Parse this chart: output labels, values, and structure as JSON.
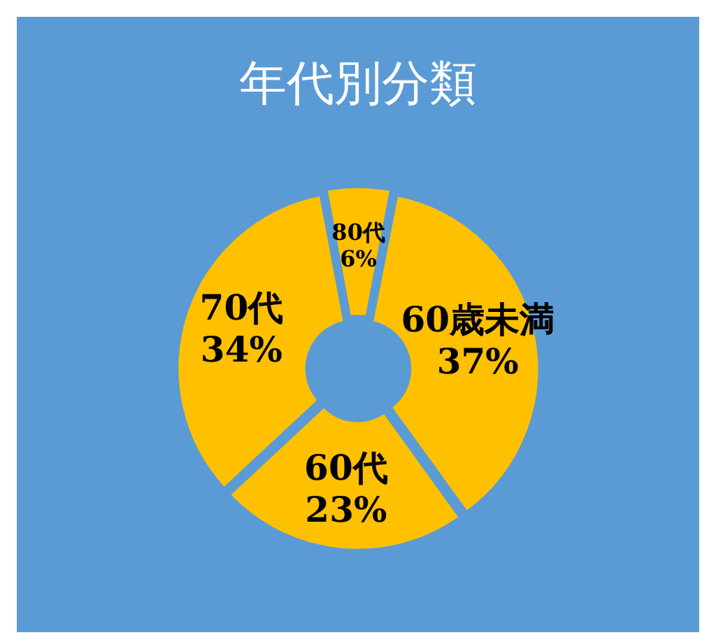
{
  "chart_data": {
    "type": "donut",
    "title": "年代別分類",
    "categories": [
      "60歳未満",
      "60代",
      "70代",
      "80代"
    ],
    "values": [
      37,
      23,
      34,
      6
    ],
    "colors": [
      "#ffc000",
      "#ffc000",
      "#ffc000",
      "#ffc000"
    ],
    "value_labels": [
      "37%",
      "23%",
      "34%",
      "6%"
    ],
    "legend": false
  }
}
